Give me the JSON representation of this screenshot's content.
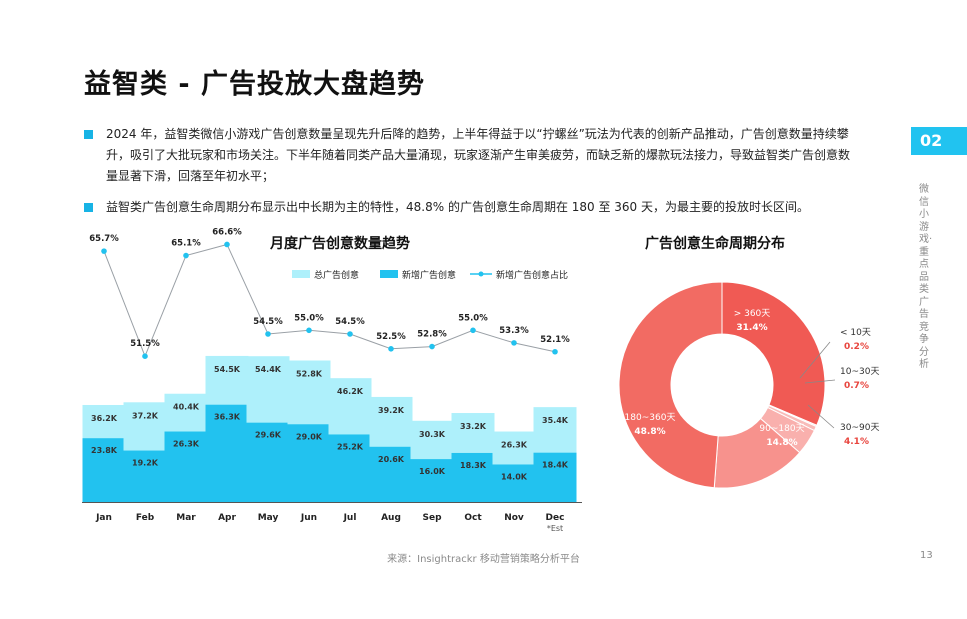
{
  "page": {
    "title": "益智类 - 广告投放大盘趋势",
    "bullets": [
      "2024 年，益智类微信小游戏广告创意数量呈现先升后降的趋势，上半年得益于以“拧螺丝”玩法为代表的创新产品推动，广告创意数量持续攀升，吸引了大批玩家和市场关注。下半年随着同类产品大量涌现，玩家逐渐产生审美疲劳，而缺乏新的爆款玩法接力，导致益智类广告创意数量显著下滑，回落至年初水平；",
      "益智类广告创意生命周期分布显示出中长期为主的特性，48.8% 的广告创意生命周期在 180 至 360 天，为最主要的投放时长区间。"
    ],
    "section_number": "02",
    "section_text": "微信小游戏·重点品类广告竞争分析",
    "source": "来源：Insightrackr 移动营销策略分析平台",
    "page_number": "13",
    "accent_color": "#17b3e5"
  },
  "chart_data": [
    {
      "type": "bar",
      "title": "月度广告创意数量趋势",
      "categories": [
        "Jan",
        "Feb",
        "Mar",
        "Apr",
        "May",
        "Jun",
        "Jul",
        "Aug",
        "Sep",
        "Oct",
        "Nov",
        "Dec"
      ],
      "category_notes": {
        "Dec": "*Est"
      },
      "series": [
        {
          "name": "总广告创意",
          "color": "#aef0fb",
          "values": [
            36.2,
            37.2,
            40.4,
            54.5,
            54.4,
            52.8,
            46.2,
            39.2,
            30.3,
            33.2,
            26.3,
            35.4
          ],
          "labels": [
            "36.2K",
            "37.2K",
            "40.4K",
            "54.5K",
            "54.4K",
            "52.8K",
            "46.2K",
            "39.2K",
            "30.3K",
            "33.2K",
            "26.3K",
            "35.4K"
          ]
        },
        {
          "name": "新增广告创意",
          "color": "#22c2ef",
          "values": [
            23.8,
            19.2,
            26.3,
            36.3,
            29.6,
            29.0,
            25.2,
            20.6,
            16.0,
            18.3,
            14.0,
            18.4
          ],
          "labels": [
            "23.8K",
            "19.2K",
            "26.3K",
            "36.3K",
            "29.6K",
            "29.0K",
            "25.2K",
            "20.6K",
            "16.0K",
            "18.3K",
            "14.0K",
            "18.4K"
          ]
        },
        {
          "name": "新增广告创意占比",
          "color": "#22c2ef",
          "type": "line",
          "values": [
            65.7,
            51.5,
            65.1,
            66.6,
            54.5,
            55.0,
            54.5,
            52.5,
            52.8,
            55.0,
            53.3,
            52.1
          ],
          "labels": [
            "65.7%",
            "51.5%",
            "65.1%",
            "66.6%",
            "54.5%",
            "55.0%",
            "54.5%",
            "52.5%",
            "52.8%",
            "55.0%",
            "53.3%",
            "52.1%"
          ]
        }
      ],
      "legend_position": "top"
    },
    {
      "type": "pie",
      "title": "广告创意生命周期分布",
      "slices": [
        {
          "label": "> 360天",
          "value": 31.4,
          "text": "31.4%",
          "color": "#f05a54"
        },
        {
          "label": "< 10天",
          "value": 0.2,
          "text": "0.2%",
          "color": "#fbd0ce"
        },
        {
          "label": "10~30天",
          "value": 0.7,
          "text": "0.7%",
          "color": "#f8bcb9"
        },
        {
          "label": "30~90天",
          "value": 4.1,
          "text": "4.1%",
          "color": "#f9b0ad"
        },
        {
          "label": "90~180天",
          "value": 14.8,
          "text": "14.8%",
          "color": "#f7928d"
        },
        {
          "label": "180~360天",
          "value": 48.8,
          "text": "48.8%",
          "color": "#f26b63"
        }
      ],
      "label_color": "#e8453e"
    }
  ]
}
